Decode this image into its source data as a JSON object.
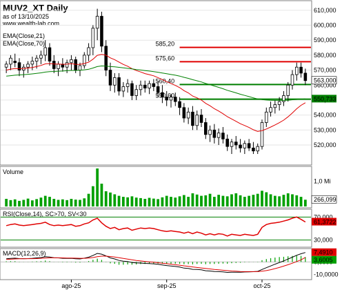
{
  "header": {
    "title": "MUV2_XT Daily",
    "date": "as of 13/10/2025",
    "site": "www.wealth-lab.com",
    "ema_short_label": "EMA(Close,21)",
    "ema_long_label": "EMA(Close,70)"
  },
  "colors": {
    "up": "#000000",
    "down": "#000000",
    "ema_short": "#e00000",
    "ema_long": "#008000",
    "volume": "#00a000",
    "rsi": "#e00000",
    "rsi_band": "#008000",
    "macd": "#000000",
    "macd_signal": "#e00000",
    "macd_hist": "#00a000",
    "level": "#e00000",
    "support": "#008000"
  },
  "chart_data": [
    {
      "type": "candlestick",
      "panel": "price",
      "ylim": [
        508000,
        615000
      ],
      "yticks": [
        {
          "v": 610000,
          "label": "610,000"
        },
        {
          "v": 600000,
          "label": "600,000"
        },
        {
          "v": 590000,
          "label": "590,000"
        },
        {
          "v": 580000,
          "label": "580,000"
        },
        {
          "v": 570000,
          "label": "570,000"
        },
        {
          "v": 560000,
          "label": "560,000"
        },
        {
          "v": 550000,
          "label": "550,000"
        },
        {
          "v": 540000,
          "label": "540,000"
        },
        {
          "v": 530000,
          "label": "530,000"
        },
        {
          "v": 520000,
          "label": "520,000"
        }
      ],
      "last_close_label": "563,000",
      "last_ema_long_label": "550,733",
      "ohlc": [
        [
          572000,
          576000,
          568000,
          574000
        ],
        [
          574000,
          580000,
          570000,
          578000
        ],
        [
          576000,
          581000,
          572000,
          575000
        ],
        [
          575000,
          578000,
          566000,
          570000
        ],
        [
          570000,
          574000,
          565000,
          572000
        ],
        [
          572000,
          576000,
          568000,
          574000
        ],
        [
          574000,
          579000,
          570000,
          576000
        ],
        [
          576000,
          580000,
          571000,
          578000
        ],
        [
          578000,
          583000,
          574000,
          580000
        ],
        [
          580000,
          590000,
          576000,
          585000
        ],
        [
          585000,
          588000,
          573000,
          576000
        ],
        [
          576000,
          580000,
          568000,
          571000
        ],
        [
          571000,
          576000,
          566000,
          574000
        ],
        [
          574000,
          578000,
          569000,
          572000
        ],
        [
          572000,
          577000,
          568000,
          575000
        ],
        [
          575000,
          580000,
          570000,
          577000
        ],
        [
          577000,
          579000,
          568000,
          570000
        ],
        [
          570000,
          575000,
          566000,
          573000
        ],
        [
          573000,
          582000,
          571000,
          580000
        ],
        [
          580000,
          588000,
          576000,
          585000
        ],
        [
          585000,
          600000,
          580000,
          598000
        ],
        [
          598000,
          611000,
          590000,
          606000
        ],
        [
          606000,
          609000,
          582000,
          586000
        ],
        [
          586000,
          590000,
          566000,
          570000
        ],
        [
          570000,
          575000,
          556000,
          560000
        ],
        [
          560000,
          568000,
          555000,
          565000
        ],
        [
          565000,
          568000,
          553000,
          556000
        ],
        [
          556000,
          562000,
          552000,
          559000
        ],
        [
          559000,
          564000,
          555000,
          561000
        ],
        [
          561000,
          563000,
          550000,
          553000
        ],
        [
          553000,
          560000,
          550000,
          557000
        ],
        [
          557000,
          563000,
          553000,
          560000
        ],
        [
          560000,
          563000,
          555000,
          558000
        ],
        [
          558000,
          563000,
          554000,
          561000
        ],
        [
          561000,
          564000,
          556000,
          559000
        ],
        [
          559000,
          563000,
          552000,
          555000
        ],
        [
          555000,
          560000,
          548000,
          552000
        ],
        [
          552000,
          556000,
          546000,
          550000
        ],
        [
          550000,
          554000,
          545000,
          552000
        ],
        [
          552000,
          555000,
          546000,
          549000
        ],
        [
          549000,
          552000,
          540000,
          545000
        ],
        [
          545000,
          548000,
          535000,
          538000
        ],
        [
          538000,
          545000,
          534000,
          542000
        ],
        [
          542000,
          546000,
          530000,
          533000
        ],
        [
          533000,
          543000,
          530000,
          540000
        ],
        [
          540000,
          544000,
          532000,
          535000
        ],
        [
          535000,
          538000,
          524000,
          527000
        ],
        [
          527000,
          533000,
          522000,
          530000
        ],
        [
          530000,
          534000,
          521000,
          525000
        ],
        [
          525000,
          531000,
          520000,
          528000
        ],
        [
          528000,
          532000,
          521000,
          524000
        ],
        [
          524000,
          527000,
          516000,
          519000
        ],
        [
          519000,
          524000,
          514000,
          522000
        ],
        [
          522000,
          526000,
          517000,
          520000
        ],
        [
          520000,
          524000,
          515000,
          518000
        ],
        [
          518000,
          523000,
          514000,
          521000
        ],
        [
          521000,
          524000,
          516000,
          518000
        ],
        [
          518000,
          522000,
          514000,
          516000
        ],
        [
          516000,
          521000,
          514000,
          519000
        ],
        [
          519000,
          537000,
          517000,
          535000
        ],
        [
          535000,
          545000,
          532000,
          542000
        ],
        [
          542000,
          549000,
          539000,
          545000
        ],
        [
          545000,
          550000,
          541000,
          547000
        ],
        [
          547000,
          552000,
          543000,
          549000
        ],
        [
          549000,
          556000,
          546000,
          553000
        ],
        [
          553000,
          562000,
          549000,
          560000
        ],
        [
          560000,
          570000,
          557000,
          567000
        ],
        [
          567000,
          575000,
          563000,
          572000
        ],
        [
          572000,
          575000,
          565000,
          568000
        ],
        [
          568000,
          571000,
          560000,
          563000
        ]
      ],
      "ema_short": [
        570000,
        570700,
        571100,
        571000,
        571100,
        571400,
        571800,
        572400,
        573100,
        574200,
        574400,
        574100,
        574100,
        573900,
        574000,
        574300,
        573900,
        573800,
        574400,
        575300,
        577300,
        579900,
        580500,
        580000,
        578200,
        577000,
        575400,
        573800,
        572600,
        571000,
        569700,
        568800,
        567700,
        567000,
        566200,
        565000,
        563700,
        562300,
        561100,
        559800,
        558300,
        556300,
        554800,
        552700,
        551500,
        550000,
        547800,
        546200,
        544200,
        542700,
        540900,
        538900,
        537400,
        535800,
        534200,
        533000,
        531700,
        530200,
        529100,
        529600,
        530700,
        532000,
        533400,
        534900,
        536600,
        538800,
        541400,
        544200,
        546500,
        548200
      ],
      "ema_long": [
        566000,
        566300,
        566600,
        566800,
        567000,
        567200,
        567500,
        567800,
        568200,
        568700,
        569000,
        569100,
        569300,
        569400,
        569600,
        569800,
        569800,
        569900,
        570200,
        570600,
        571400,
        572400,
        572800,
        572700,
        572400,
        572200,
        571900,
        571500,
        571200,
        570800,
        570400,
        570100,
        569700,
        569400,
        569000,
        568600,
        568100,
        567600,
        567100,
        566600,
        566000,
        565200,
        564500,
        563600,
        562900,
        562100,
        561100,
        560300,
        559400,
        558500,
        557600,
        556500,
        555700,
        554800,
        553900,
        553100,
        552300,
        551500,
        550700,
        550300,
        550000,
        549900,
        549800,
        549800,
        549800,
        549900,
        550200,
        550400,
        550600,
        550733
      ],
      "levels": [
        {
          "label": "585,20",
          "value": 585200,
          "start_index": 40,
          "color": "level"
        },
        {
          "label": "575,60",
          "value": 575600,
          "start_index": 40,
          "color": "level"
        },
        {
          "label": "560,40",
          "value": 560400,
          "start_index": 40,
          "color": "support"
        },
        {
          "label": "550,60",
          "value": 550600,
          "start_index": 40,
          "color": "support"
        }
      ]
    },
    {
      "type": "bar",
      "panel": "volume",
      "title": "Volume",
      "ylim": [
        0,
        1500000
      ],
      "yticks": [
        {
          "v": 1000000,
          "label": "1,0 Mi"
        }
      ],
      "last_label": "266,099",
      "values": [
        300000,
        250000,
        280000,
        220000,
        260000,
        310000,
        240000,
        290000,
        350000,
        420000,
        380000,
        300000,
        260000,
        280000,
        250000,
        300000,
        270000,
        260000,
        320000,
        500000,
        800000,
        1550000,
        900000,
        600000,
        550000,
        480000,
        420000,
        380000,
        360000,
        400000,
        350000,
        330000,
        300000,
        340000,
        310000,
        290000,
        360000,
        420000,
        380000,
        350000,
        400000,
        450000,
        380000,
        520000,
        470000,
        420000,
        440000,
        500000,
        380000,
        460000,
        420000,
        400000,
        480000,
        520000,
        440000,
        380000,
        420000,
        460000,
        500000,
        620000,
        560000,
        480000,
        420000,
        400000,
        460000,
        520000,
        480000,
        440000,
        380000,
        266099
      ]
    },
    {
      "type": "line",
      "panel": "rsi",
      "title": "RSI(Close,14), SC>70, SV<30",
      "ylim": [
        20,
        80
      ],
      "yticks": [
        {
          "v": 70,
          "label": "70,000"
        },
        {
          "v": 30,
          "label": "30,000"
        }
      ],
      "upper": 70,
      "lower": 30,
      "last_label": "61,3722",
      "values": [
        55,
        57,
        58,
        56,
        55,
        56,
        57,
        58,
        59,
        61,
        57,
        55,
        56,
        55,
        56,
        57,
        54,
        55,
        58,
        60,
        65,
        68,
        60,
        54,
        50,
        52,
        48,
        50,
        51,
        47,
        49,
        51,
        50,
        51,
        50,
        48,
        46,
        45,
        46,
        45,
        44,
        42,
        44,
        41,
        44,
        42,
        39,
        41,
        39,
        41,
        40,
        37,
        40,
        39,
        38,
        40,
        39,
        38,
        40,
        52,
        57,
        59,
        60,
        61,
        63,
        65,
        68,
        70,
        66,
        61.37
      ]
    },
    {
      "type": "line",
      "panel": "macd",
      "title": "MACD(12,26,9)",
      "ylim": [
        -13,
        9
      ],
      "yticks": [
        {
          "v": 0,
          "label": "0,0000"
        },
        {
          "v": -10,
          "label": "-10,0000"
        }
      ],
      "last_macd_label": "7,4910",
      "last_signal_label": "3,6005",
      "macd": [
        2.5,
        2.8,
        3.0,
        2.7,
        2.6,
        2.7,
        2.9,
        3.2,
        3.5,
        4.2,
        3.9,
        3.4,
        3.2,
        2.9,
        2.8,
        2.9,
        2.5,
        2.4,
        3.0,
        3.8,
        5.2,
        6.8,
        6.2,
        4.8,
        3.2,
        2.4,
        1.2,
        0.6,
        0.3,
        -0.5,
        -0.8,
        -0.9,
        -1.2,
        -1.3,
        -1.5,
        -1.9,
        -2.4,
        -2.9,
        -3.2,
        -3.6,
        -4.1,
        -4.9,
        -5.2,
        -5.9,
        -6.0,
        -6.3,
        -7.0,
        -7.2,
        -7.6,
        -7.7,
        -7.9,
        -8.3,
        -8.2,
        -8.2,
        -8.2,
        -8.0,
        -7.9,
        -7.8,
        -7.5,
        -6.0,
        -4.6,
        -3.2,
        -1.8,
        -0.5,
        0.8,
        2.3,
        3.8,
        5.3,
        6.5,
        7.49
      ],
      "signal": [
        2.0,
        2.2,
        2.4,
        2.5,
        2.5,
        2.6,
        2.6,
        2.7,
        2.9,
        3.1,
        3.3,
        3.3,
        3.3,
        3.2,
        3.1,
        3.1,
        3.0,
        2.9,
        2.9,
        3.1,
        3.5,
        4.2,
        4.6,
        4.6,
        4.3,
        3.9,
        3.4,
        2.8,
        2.3,
        1.7,
        1.2,
        0.8,
        0.4,
        0.1,
        -0.2,
        -0.6,
        -1.0,
        -1.4,
        -1.8,
        -2.2,
        -2.6,
        -3.1,
        -3.5,
        -4.0,
        -4.4,
        -4.8,
        -5.2,
        -5.6,
        -6.0,
        -6.3,
        -6.6,
        -6.9,
        -7.2,
        -7.4,
        -7.6,
        -7.7,
        -7.7,
        -7.7,
        -7.7,
        -7.4,
        -6.9,
        -6.2,
        -5.3,
        -4.4,
        -3.3,
        -2.2,
        -1.0,
        0.3,
        1.7,
        3.6005
      ]
    }
  ],
  "x_axis": {
    "labels": [
      {
        "index": 15,
        "label": "ago-25"
      },
      {
        "index": 37,
        "label": "sep-25"
      },
      {
        "index": 59,
        "label": "oct-25"
      }
    ]
  }
}
